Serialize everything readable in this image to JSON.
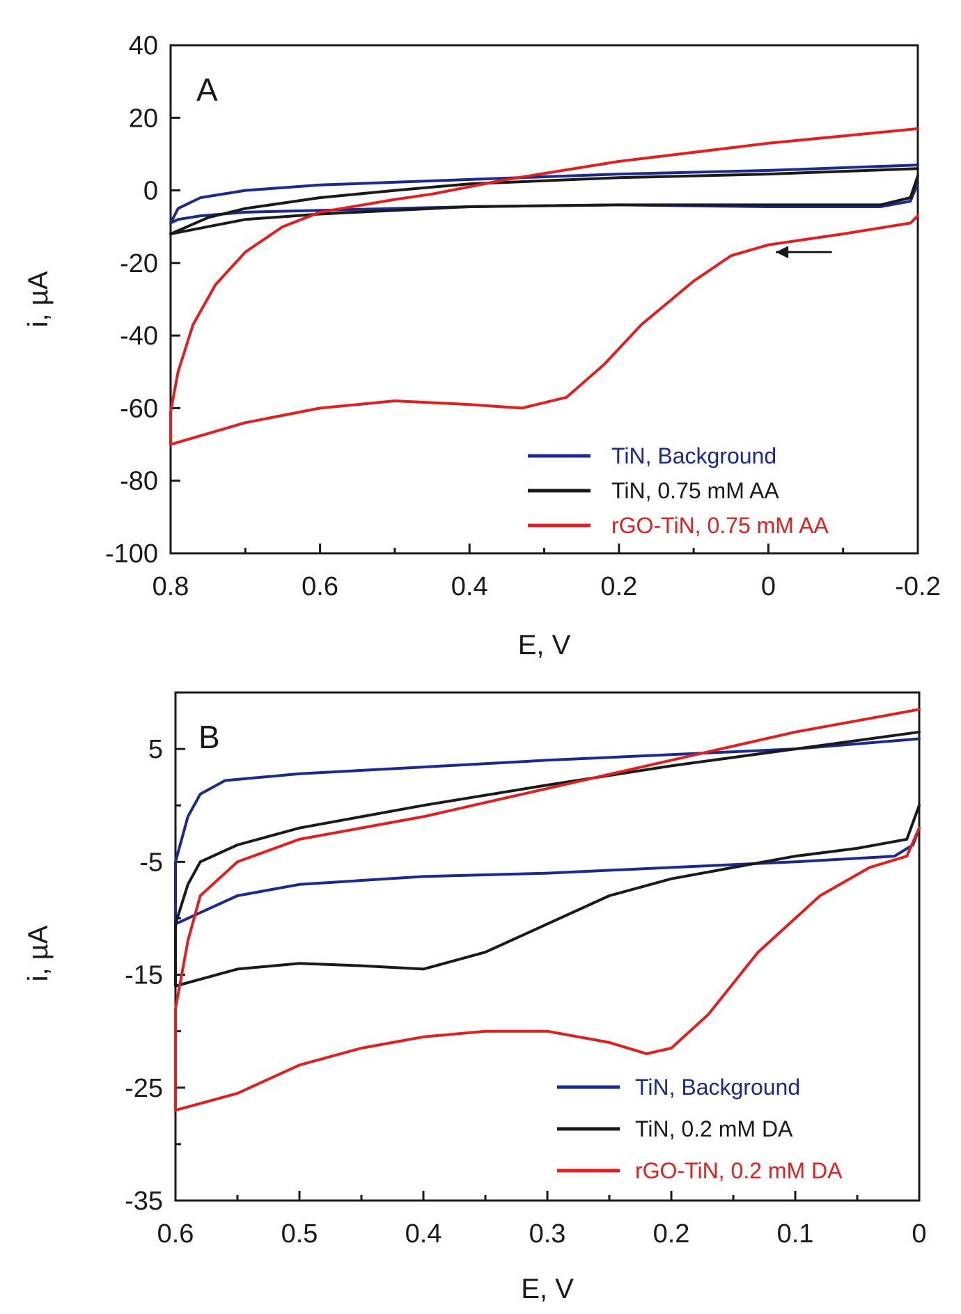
{
  "chart_data": [
    {
      "type": "line",
      "panel_label": "A",
      "xlabel": "E, V",
      "ylabel": "i, µA",
      "xlim": [
        0.8,
        -0.2
      ],
      "ylim": [
        -100,
        40
      ],
      "x_ticks": [
        0.8,
        0.6,
        0.4,
        0.2,
        0,
        -0.2
      ],
      "x_tick_labels": [
        "0.8",
        "0.6",
        "0.4",
        "0.2",
        "0",
        "-0.2"
      ],
      "y_ticks": [
        40,
        20,
        0,
        -20,
        -40,
        -60,
        -80,
        -100
      ],
      "y_tick_labels": [
        "40",
        "20",
        "0",
        "-20",
        "-40",
        "-60",
        "-80",
        "-100"
      ],
      "x_minor_step": 0.1,
      "legend_position": "bottom-right",
      "scan_direction_arrow": "left",
      "series": [
        {
          "name": "TiN, Background",
          "color": "#1c2a8c",
          "points": [
            [
              -0.2,
              7.0
            ],
            [
              0.0,
              5.5
            ],
            [
              0.2,
              4.5
            ],
            [
              0.4,
              3.0
            ],
            [
              0.6,
              1.5
            ],
            [
              0.7,
              0.0
            ],
            [
              0.76,
              -2.0
            ],
            [
              0.79,
              -5.0
            ],
            [
              0.8,
              -9.0
            ],
            [
              0.79,
              -8.0
            ],
            [
              0.76,
              -7.0
            ],
            [
              0.7,
              -6.0
            ],
            [
              0.6,
              -5.5
            ],
            [
              0.4,
              -4.5
            ],
            [
              0.2,
              -4.0
            ],
            [
              0.0,
              -4.5
            ],
            [
              -0.15,
              -4.5
            ],
            [
              -0.19,
              -3.0
            ],
            [
              -0.2,
              2.0
            ]
          ]
        },
        {
          "name": "TiN, 0.75 mM AA",
          "color": "#1a1a1a",
          "points": [
            [
              -0.2,
              6.0
            ],
            [
              0.0,
              4.5
            ],
            [
              0.2,
              3.5
            ],
            [
              0.4,
              1.8
            ],
            [
              0.5,
              0.0
            ],
            [
              0.6,
              -2.0
            ],
            [
              0.7,
              -5.0
            ],
            [
              0.75,
              -7.5
            ],
            [
              0.8,
              -12.0
            ],
            [
              0.75,
              -10.0
            ],
            [
              0.7,
              -8.0
            ],
            [
              0.6,
              -6.5
            ],
            [
              0.5,
              -5.5
            ],
            [
              0.4,
              -4.5
            ],
            [
              0.2,
              -4.0
            ],
            [
              0.0,
              -4.0
            ],
            [
              -0.15,
              -4.0
            ],
            [
              -0.19,
              -2.0
            ],
            [
              -0.2,
              4.0
            ]
          ]
        },
        {
          "name": "rGO-TiN, 0.75 mM AA",
          "color": "#e02020",
          "points": [
            [
              -0.2,
              17.0
            ],
            [
              0.0,
              13.0
            ],
            [
              0.2,
              8.0
            ],
            [
              0.35,
              3.0
            ],
            [
              0.4,
              1.0
            ],
            [
              0.45,
              -1.0
            ],
            [
              0.5,
              -2.5
            ],
            [
              0.6,
              -6.0
            ],
            [
              0.65,
              -10.0
            ],
            [
              0.7,
              -17.0
            ],
            [
              0.74,
              -26.0
            ],
            [
              0.77,
              -37.0
            ],
            [
              0.79,
              -50.0
            ],
            [
              0.8,
              -61.0
            ],
            [
              0.8,
              -70.0
            ],
            [
              0.75,
              -67.0
            ],
            [
              0.7,
              -64.0
            ],
            [
              0.6,
              -60.0
            ],
            [
              0.5,
              -58.0
            ],
            [
              0.4,
              -59.0
            ],
            [
              0.33,
              -60.0
            ],
            [
              0.27,
              -57.0
            ],
            [
              0.22,
              -48.0
            ],
            [
              0.17,
              -37.0
            ],
            [
              0.1,
              -25.0
            ],
            [
              0.05,
              -18.0
            ],
            [
              0.0,
              -15.0
            ],
            [
              -0.1,
              -12.0
            ],
            [
              -0.19,
              -9.0
            ],
            [
              -0.2,
              -7.0
            ]
          ]
        }
      ]
    },
    {
      "type": "line",
      "panel_label": "B",
      "xlabel": "E, V",
      "ylabel": "i, µA",
      "xlim": [
        0.6,
        0
      ],
      "ylim": [
        -35,
        10
      ],
      "x_ticks": [
        0.6,
        0.5,
        0.4,
        0.3,
        0.2,
        0.1,
        0
      ],
      "x_tick_labels": [
        "0.6",
        "0.5",
        "0.4",
        "0.3",
        "0.2",
        "0.1",
        "0"
      ],
      "y_ticks": [
        5,
        -5,
        -15,
        -25,
        -35
      ],
      "y_tick_labels": [
        "5",
        "-5",
        "-15",
        "-25",
        "-35"
      ],
      "x_minor_step": 0.05,
      "y_minor_step": 5,
      "legend_position": "bottom-right",
      "series": [
        {
          "name": "TiN, Background",
          "color": "#1c2a8c",
          "points": [
            [
              0.0,
              5.9
            ],
            [
              0.1,
              5.0
            ],
            [
              0.2,
              4.5
            ],
            [
              0.3,
              4.0
            ],
            [
              0.4,
              3.4
            ],
            [
              0.5,
              2.8
            ],
            [
              0.56,
              2.2
            ],
            [
              0.58,
              1.0
            ],
            [
              0.59,
              -1.0
            ],
            [
              0.6,
              -5.0
            ],
            [
              0.6,
              -10.5
            ],
            [
              0.58,
              -9.5
            ],
            [
              0.55,
              -8.0
            ],
            [
              0.5,
              -7.0
            ],
            [
              0.4,
              -6.3
            ],
            [
              0.3,
              -6.0
            ],
            [
              0.2,
              -5.5
            ],
            [
              0.1,
              -5.0
            ],
            [
              0.02,
              -4.5
            ],
            [
              0.005,
              -3.5
            ],
            [
              0.0,
              -2.0
            ]
          ]
        },
        {
          "name": "TiN, 0.2 mM DA",
          "color": "#1a1a1a",
          "points": [
            [
              0.0,
              6.5
            ],
            [
              0.1,
              5.0
            ],
            [
              0.2,
              3.5
            ],
            [
              0.3,
              1.8
            ],
            [
              0.4,
              0.0
            ],
            [
              0.5,
              -2.0
            ],
            [
              0.55,
              -3.5
            ],
            [
              0.58,
              -5.0
            ],
            [
              0.59,
              -7.0
            ],
            [
              0.6,
              -10.5
            ],
            [
              0.6,
              -16.0
            ],
            [
              0.55,
              -14.5
            ],
            [
              0.5,
              -14.0
            ],
            [
              0.45,
              -14.2
            ],
            [
              0.4,
              -14.5
            ],
            [
              0.35,
              -13.0
            ],
            [
              0.3,
              -10.5
            ],
            [
              0.25,
              -8.0
            ],
            [
              0.2,
              -6.5
            ],
            [
              0.15,
              -5.5
            ],
            [
              0.1,
              -4.5
            ],
            [
              0.05,
              -3.8
            ],
            [
              0.01,
              -3.0
            ],
            [
              0.0,
              0.0
            ]
          ]
        },
        {
          "name": "rGO-TiN, 0.2 mM DA",
          "color": "#e02020",
          "points": [
            [
              0.0,
              8.5
            ],
            [
              0.1,
              6.5
            ],
            [
              0.2,
              4.0
            ],
            [
              0.3,
              1.5
            ],
            [
              0.4,
              -1.0
            ],
            [
              0.5,
              -3.0
            ],
            [
              0.55,
              -5.0
            ],
            [
              0.58,
              -8.0
            ],
            [
              0.59,
              -12.0
            ],
            [
              0.6,
              -18.0
            ],
            [
              0.6,
              -27.0
            ],
            [
              0.55,
              -25.5
            ],
            [
              0.5,
              -23.0
            ],
            [
              0.45,
              -21.5
            ],
            [
              0.4,
              -20.5
            ],
            [
              0.35,
              -20.0
            ],
            [
              0.3,
              -20.0
            ],
            [
              0.25,
              -21.0
            ],
            [
              0.22,
              -22.0
            ],
            [
              0.2,
              -21.5
            ],
            [
              0.17,
              -18.5
            ],
            [
              0.13,
              -13.0
            ],
            [
              0.08,
              -8.0
            ],
            [
              0.04,
              -5.5
            ],
            [
              0.01,
              -4.5
            ],
            [
              0.0,
              -2.0
            ]
          ]
        }
      ]
    }
  ]
}
